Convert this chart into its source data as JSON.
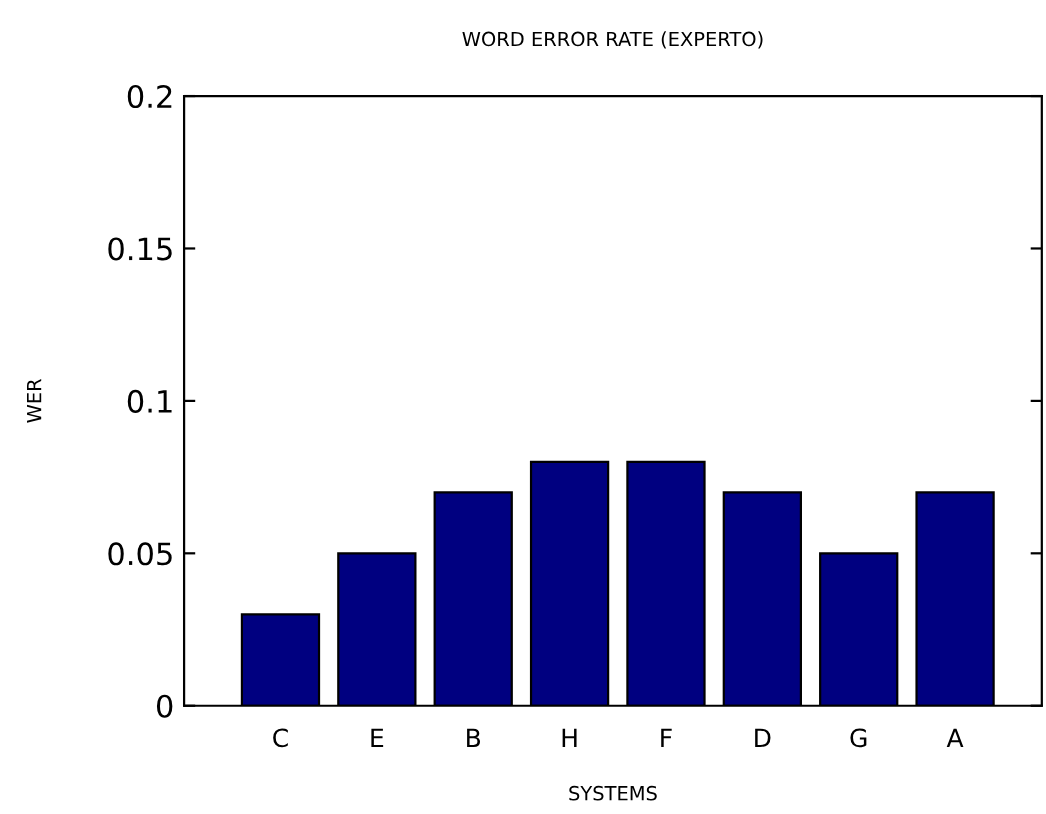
{
  "chart_data": {
    "type": "bar",
    "title": "WORD ERROR RATE (EXPERTO)",
    "xlabel": "SYSTEMS",
    "ylabel": "WER",
    "categories": [
      "C",
      "E",
      "B",
      "H",
      "F",
      "D",
      "G",
      "A"
    ],
    "values": [
      0.03,
      0.05,
      0.07,
      0.08,
      0.08,
      0.07,
      0.05,
      0.07
    ],
    "color": "#000080",
    "ylim": [
      0,
      0.2
    ],
    "yticks": [
      0,
      0.05,
      0.1,
      0.15,
      0.2
    ],
    "grid": false,
    "legend": false
  }
}
